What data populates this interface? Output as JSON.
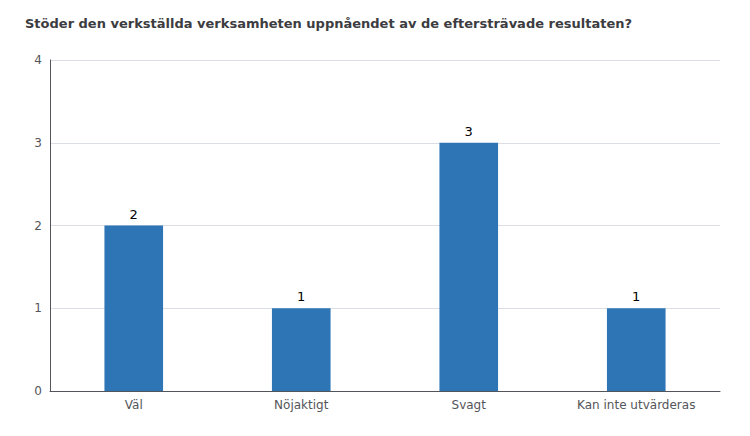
{
  "chart_data": {
    "type": "bar",
    "title": "Stöder den verkställda verksamheten uppnåendet av de eftersträvade resultaten?",
    "categories": [
      "Väl",
      "Nöjaktigt",
      "Svagt",
      "Kan inte utvärderas"
    ],
    "values": [
      2,
      1,
      3,
      1
    ],
    "color": "#2E75B6",
    "ylim": [
      0,
      4
    ],
    "yticks": [
      0,
      1,
      2,
      3,
      4
    ],
    "grid": true,
    "data_labels": true
  }
}
